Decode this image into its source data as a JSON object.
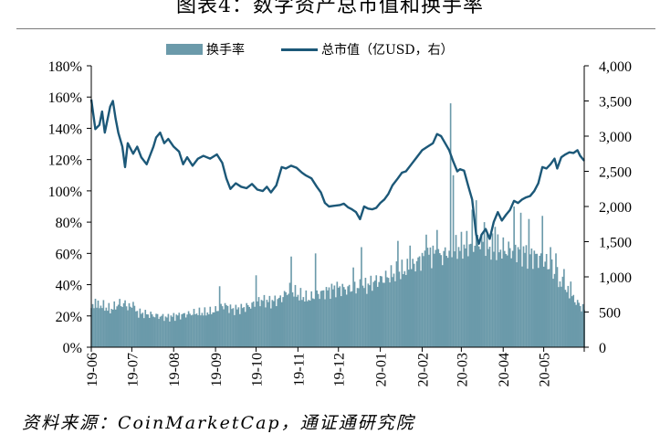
{
  "title": "图表4：数字资产总市值和换手率",
  "source": "资料来源：CoinMarketCap，通证通研究院",
  "legend": {
    "bar_label": "换手率",
    "line_label": "总市值（亿USD，右）"
  },
  "colors": {
    "bars": "#6b9aaa",
    "line": "#1c5878",
    "axis": "#000000"
  },
  "chart_data": {
    "type": "bar+line",
    "x_tick_labels": [
      "19-06",
      "19-07",
      "19-08",
      "19-09",
      "19-10",
      "19-11",
      "19-12",
      "20-01",
      "20-02",
      "20-03",
      "20-04",
      "20-05"
    ],
    "left_axis": {
      "ylim": [
        0,
        180
      ],
      "ticks": [
        "0%",
        "20%",
        "40%",
        "60%",
        "80%",
        "100%",
        "120%",
        "140%",
        "160%",
        "180%"
      ]
    },
    "right_axis": {
      "ylim": [
        0,
        4000
      ],
      "ticks": [
        "0",
        "500",
        "1,000",
        "1,500",
        "2,000",
        "2,500",
        "3,000",
        "3,500",
        "4,000"
      ]
    },
    "x_start": "2019-06-01",
    "x_end": "2020-05-31",
    "series": [
      {
        "name": "换手率",
        "kind": "bar",
        "axis": "left",
        "anchors_pct": [
          [
            "2019-06-01",
            25
          ],
          [
            "2019-06-08",
            27
          ],
          [
            "2019-06-15",
            24
          ],
          [
            "2019-06-22",
            28
          ],
          [
            "2019-06-29",
            26
          ],
          [
            "2019-07-06",
            22
          ],
          [
            "2019-07-13",
            21
          ],
          [
            "2019-07-20",
            20
          ],
          [
            "2019-07-27",
            19
          ],
          [
            "2019-08-03",
            20
          ],
          [
            "2019-08-10",
            21
          ],
          [
            "2019-08-17",
            22
          ],
          [
            "2019-08-24",
            22
          ],
          [
            "2019-08-31",
            23
          ],
          [
            "2019-09-07",
            27
          ],
          [
            "2019-09-14",
            24
          ],
          [
            "2019-09-21",
            25
          ],
          [
            "2019-09-28",
            27
          ],
          [
            "2019-10-05",
            30
          ],
          [
            "2019-10-12",
            29
          ],
          [
            "2019-10-19",
            31
          ],
          [
            "2019-10-26",
            37
          ],
          [
            "2019-11-02",
            33
          ],
          [
            "2019-11-09",
            31
          ],
          [
            "2019-11-16",
            34
          ],
          [
            "2019-11-23",
            36
          ],
          [
            "2019-11-30",
            38
          ],
          [
            "2019-12-07",
            37
          ],
          [
            "2019-12-14",
            38
          ],
          [
            "2019-12-21",
            39
          ],
          [
            "2019-12-28",
            42
          ],
          [
            "2020-01-04",
            44
          ],
          [
            "2020-01-11",
            47
          ],
          [
            "2020-01-18",
            49
          ],
          [
            "2020-01-25",
            52
          ],
          [
            "2020-02-01",
            57
          ],
          [
            "2020-02-08",
            60
          ],
          [
            "2020-02-15",
            58
          ],
          [
            "2020-02-22",
            62
          ],
          [
            "2020-02-29",
            64
          ],
          [
            "2020-03-07",
            66
          ],
          [
            "2020-03-14",
            68
          ],
          [
            "2020-03-21",
            64
          ],
          [
            "2020-03-28",
            63
          ],
          [
            "2020-04-04",
            62
          ],
          [
            "2020-04-11",
            62
          ],
          [
            "2020-04-18",
            60
          ],
          [
            "2020-04-25",
            58
          ],
          [
            "2020-05-02",
            55
          ],
          [
            "2020-05-09",
            47
          ],
          [
            "2020-05-16",
            38
          ],
          [
            "2020-05-23",
            31
          ],
          [
            "2020-05-31",
            24
          ]
        ],
        "spikes_pct": [
          [
            "2019-06-04",
            31
          ],
          [
            "2019-06-26",
            30
          ],
          [
            "2019-07-02",
            29
          ],
          [
            "2019-09-04",
            39
          ],
          [
            "2019-10-01",
            46
          ],
          [
            "2019-10-27",
            58
          ],
          [
            "2019-11-14",
            60
          ],
          [
            "2019-12-12",
            51
          ],
          [
            "2019-12-18",
            64
          ],
          [
            "2020-01-14",
            68
          ],
          [
            "2020-01-23",
            65
          ],
          [
            "2020-02-04",
            72
          ],
          [
            "2020-02-12",
            75
          ],
          [
            "2020-02-22",
            156
          ],
          [
            "2020-02-24",
            110
          ],
          [
            "2020-03-09",
            88
          ],
          [
            "2020-03-12",
            94
          ],
          [
            "2020-03-18",
            80
          ],
          [
            "2020-03-26",
            77
          ],
          [
            "2020-04-09",
            90
          ],
          [
            "2020-04-14",
            86
          ],
          [
            "2020-04-20",
            82
          ],
          [
            "2020-04-30",
            84
          ],
          [
            "2020-05-06",
            64
          ],
          [
            "2020-05-10",
            60
          ],
          [
            "2020-05-16",
            50
          ],
          [
            "2020-05-21",
            42
          ]
        ]
      },
      {
        "name": "总市值（亿USD，右）",
        "kind": "line",
        "axis": "right",
        "points": [
          [
            "2019-06-01",
            3520
          ],
          [
            "2019-06-04",
            3100
          ],
          [
            "2019-06-07",
            3160
          ],
          [
            "2019-06-09",
            3350
          ],
          [
            "2019-06-11",
            3050
          ],
          [
            "2019-06-15",
            3420
          ],
          [
            "2019-06-17",
            3500
          ],
          [
            "2019-06-19",
            3250
          ],
          [
            "2019-06-21",
            3050
          ],
          [
            "2019-06-24",
            2850
          ],
          [
            "2019-06-26",
            2560
          ],
          [
            "2019-06-28",
            2900
          ],
          [
            "2019-07-02",
            2750
          ],
          [
            "2019-07-05",
            2850
          ],
          [
            "2019-07-08",
            2700
          ],
          [
            "2019-07-12",
            2600
          ],
          [
            "2019-07-15",
            2750
          ],
          [
            "2019-07-17",
            2850
          ],
          [
            "2019-07-19",
            2980
          ],
          [
            "2019-07-22",
            3050
          ],
          [
            "2019-07-25",
            2900
          ],
          [
            "2019-07-28",
            2960
          ],
          [
            "2019-08-01",
            2850
          ],
          [
            "2019-08-05",
            2780
          ],
          [
            "2019-08-08",
            2600
          ],
          [
            "2019-08-11",
            2700
          ],
          [
            "2019-08-15",
            2580
          ],
          [
            "2019-08-19",
            2680
          ],
          [
            "2019-08-23",
            2720
          ],
          [
            "2019-08-28",
            2680
          ],
          [
            "2019-09-02",
            2740
          ],
          [
            "2019-09-06",
            2620
          ],
          [
            "2019-09-09",
            2400
          ],
          [
            "2019-09-12",
            2250
          ],
          [
            "2019-09-16",
            2330
          ],
          [
            "2019-09-20",
            2280
          ],
          [
            "2019-09-24",
            2260
          ],
          [
            "2019-09-28",
            2320
          ],
          [
            "2019-10-02",
            2240
          ],
          [
            "2019-10-06",
            2220
          ],
          [
            "2019-10-09",
            2280
          ],
          [
            "2019-10-12",
            2200
          ],
          [
            "2019-10-16",
            2300
          ],
          [
            "2019-10-20",
            2560
          ],
          [
            "2019-10-23",
            2540
          ],
          [
            "2019-10-27",
            2580
          ],
          [
            "2019-10-31",
            2550
          ],
          [
            "2019-11-04",
            2480
          ],
          [
            "2019-11-07",
            2440
          ],
          [
            "2019-11-11",
            2400
          ],
          [
            "2019-11-15",
            2280
          ],
          [
            "2019-11-18",
            2200
          ],
          [
            "2019-11-21",
            2050
          ],
          [
            "2019-11-24",
            2000
          ],
          [
            "2019-11-28",
            2010
          ],
          [
            "2019-12-02",
            2020
          ],
          [
            "2019-12-05",
            2040
          ],
          [
            "2019-12-08",
            1990
          ],
          [
            "2019-12-11",
            1960
          ],
          [
            "2019-12-14",
            1920
          ],
          [
            "2019-12-17",
            1820
          ],
          [
            "2019-12-20",
            2000
          ],
          [
            "2019-12-23",
            1970
          ],
          [
            "2019-12-26",
            1960
          ],
          [
            "2019-12-29",
            1980
          ],
          [
            "2020-01-01",
            2050
          ],
          [
            "2020-01-04",
            2100
          ],
          [
            "2020-01-07",
            2180
          ],
          [
            "2020-01-10",
            2300
          ],
          [
            "2020-01-14",
            2400
          ],
          [
            "2020-01-17",
            2480
          ],
          [
            "2020-01-20",
            2500
          ],
          [
            "2020-01-24",
            2600
          ],
          [
            "2020-01-28",
            2700
          ],
          [
            "2020-02-01",
            2800
          ],
          [
            "2020-02-05",
            2850
          ],
          [
            "2020-02-09",
            2900
          ],
          [
            "2020-02-12",
            3030
          ],
          [
            "2020-02-15",
            3000
          ],
          [
            "2020-02-18",
            2900
          ],
          [
            "2020-02-21",
            2800
          ],
          [
            "2020-02-24",
            2640
          ],
          [
            "2020-02-27",
            2500
          ],
          [
            "2020-02-29",
            2530
          ],
          [
            "2020-03-03",
            2510
          ],
          [
            "2020-03-06",
            2300
          ],
          [
            "2020-03-09",
            2100
          ],
          [
            "2020-03-12",
            1600
          ],
          [
            "2020-03-14",
            1470
          ],
          [
            "2020-03-16",
            1600
          ],
          [
            "2020-03-19",
            1680
          ],
          [
            "2020-03-22",
            1540
          ],
          [
            "2020-03-25",
            1780
          ],
          [
            "2020-03-28",
            1920
          ],
          [
            "2020-03-31",
            1800
          ],
          [
            "2020-04-03",
            1880
          ],
          [
            "2020-04-06",
            1950
          ],
          [
            "2020-04-09",
            2080
          ],
          [
            "2020-04-12",
            2050
          ],
          [
            "2020-04-15",
            2100
          ],
          [
            "2020-04-18",
            2130
          ],
          [
            "2020-04-21",
            2150
          ],
          [
            "2020-04-24",
            2220
          ],
          [
            "2020-04-27",
            2330
          ],
          [
            "2020-04-30",
            2560
          ],
          [
            "2020-05-03",
            2540
          ],
          [
            "2020-05-06",
            2600
          ],
          [
            "2020-05-09",
            2680
          ],
          [
            "2020-05-11",
            2540
          ],
          [
            "2020-05-14",
            2700
          ],
          [
            "2020-05-17",
            2740
          ],
          [
            "2020-05-20",
            2770
          ],
          [
            "2020-05-23",
            2760
          ],
          [
            "2020-05-26",
            2800
          ],
          [
            "2020-05-28",
            2720
          ],
          [
            "2020-05-31",
            2650
          ]
        ]
      }
    ]
  }
}
